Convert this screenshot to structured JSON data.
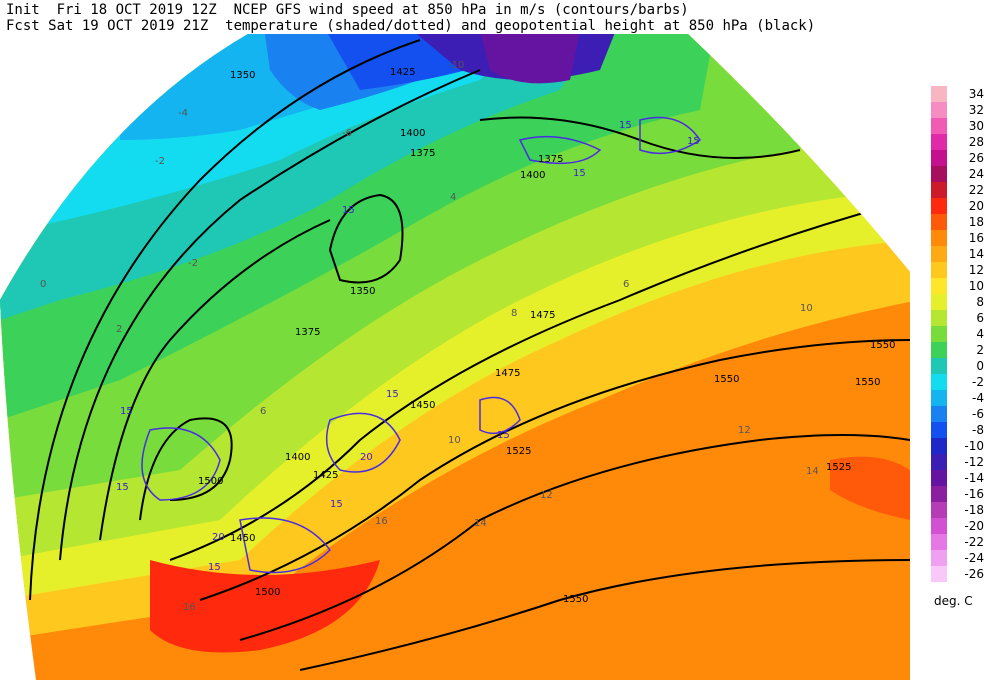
{
  "header": {
    "line1": "Init  Fri 18 OCT 2019 12Z  NCEP GFS wind speed at 850 hPa in m/s (contours/barbs)",
    "line2": "Fcst Sat 19 OCT 2019 21Z  temperature (shaded/dotted) and geopotential height at 850 hPa (black)"
  },
  "legend": {
    "unit": "deg. C",
    "entries": [
      {
        "label": "34",
        "color": "#f7b6c2"
      },
      {
        "label": "32",
        "color": "#f58cc2"
      },
      {
        "label": "30",
        "color": "#f25bb4"
      },
      {
        "label": "28",
        "color": "#e02aa7"
      },
      {
        "label": "26",
        "color": "#c4108e"
      },
      {
        "label": "24",
        "color": "#a80e5e"
      },
      {
        "label": "22",
        "color": "#cc1a2a"
      },
      {
        "label": "20",
        "color": "#ff2a0e"
      },
      {
        "label": "18",
        "color": "#ff5a0a"
      },
      {
        "label": "16",
        "color": "#ff8a0a"
      },
      {
        "label": "14",
        "color": "#ffaa14"
      },
      {
        "label": "12",
        "color": "#ffc81e"
      },
      {
        "label": "10",
        "color": "#ffe628"
      },
      {
        "label": "8",
        "color": "#e6f02a"
      },
      {
        "label": "6",
        "color": "#b4e632"
      },
      {
        "label": "4",
        "color": "#78dc3c"
      },
      {
        "label": "2",
        "color": "#3cd25a"
      },
      {
        "label": "0",
        "color": "#1ec8b4"
      },
      {
        "label": "-2",
        "color": "#14dcf0"
      },
      {
        "label": "-4",
        "color": "#14b4f0"
      },
      {
        "label": "-6",
        "color": "#1a82f0"
      },
      {
        "label": "-8",
        "color": "#1450f0"
      },
      {
        "label": "-10",
        "color": "#1e28c8"
      },
      {
        "label": "-12",
        "color": "#3c1eb4"
      },
      {
        "label": "-14",
        "color": "#6414a0"
      },
      {
        "label": "-16",
        "color": "#8c1ea0"
      },
      {
        "label": "-18",
        "color": "#b43cb4"
      },
      {
        "label": "-20",
        "color": "#d250d2"
      },
      {
        "label": "-22",
        "color": "#e678e6"
      },
      {
        "label": "-24",
        "color": "#f0a0f0"
      },
      {
        "label": "-26",
        "color": "#f8c8f8"
      }
    ]
  },
  "height_labels": [
    "1425",
    "1400",
    "1375",
    "1350",
    "1400",
    "1375",
    "1350",
    "1375",
    "1475",
    "1550",
    "1550",
    "1550",
    "1525",
    "1525",
    "1500",
    "1450",
    "1425",
    "1400",
    "1450",
    "1475",
    "1500",
    "1550"
  ],
  "temp_labels": [
    "-10",
    "-6",
    "-4",
    "-2",
    "-2",
    "0",
    "2",
    "4",
    "6",
    "8",
    "10",
    "12",
    "14",
    "16",
    "16",
    "12",
    "14",
    "10",
    "6"
  ],
  "wind_labels": [
    "15",
    "15",
    "15",
    "15",
    "15",
    "15",
    "20",
    "15",
    "15",
    "20",
    "15",
    "15"
  ]
}
